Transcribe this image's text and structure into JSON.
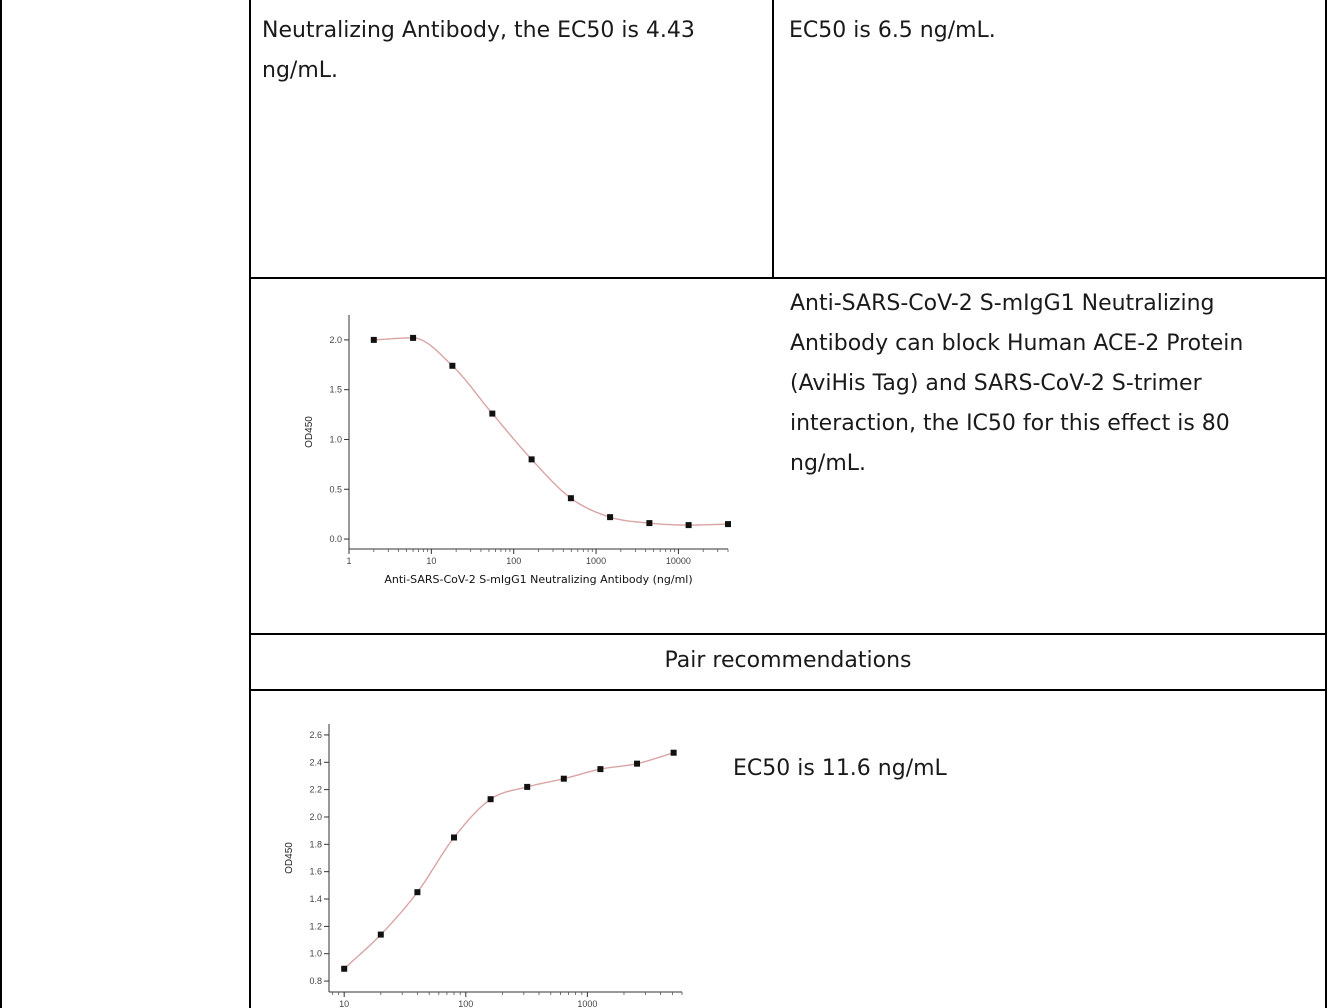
{
  "row1": {
    "left_text": "Neutralizing Antibody, the EC50 is 4.43 ng/mL.",
    "right_text": "EC50 is 6.5 ng/mL."
  },
  "row2": {
    "description": "Anti-SARS-CoV-2 S-mIgG1 Neutralizing Antibody can block Human ACE-2 Protein (AviHis Tag) and   SARS-CoV-2 S-trimer interaction, the IC50 for this effect is 80 ng/mL."
  },
  "row3": {
    "heading": "Pair recommendations"
  },
  "row4": {
    "description": "EC50 is 11.6 ng/mL"
  },
  "chart_data": [
    {
      "type": "scatter",
      "title": "",
      "xlabel": "Anti-SARS-CoV-2 S-mIgG1 Neutralizing Antibody (ng/ml)",
      "ylabel": "OD450",
      "x_scale": "log",
      "xlim": [
        1,
        40000
      ],
      "ylim": [
        -0.1,
        2.25
      ],
      "x_ticks": [
        "1",
        "10",
        "100",
        "1000",
        "10000"
      ],
      "y_ticks": [
        "0.0",
        "0.5",
        "1.0",
        "1.5",
        "2.0"
      ],
      "fit_curve": "sigmoidal",
      "curve_color": "#d9a4a4",
      "x": [
        2,
        6,
        18,
        55,
        165,
        495,
        1480,
        4440,
        13300,
        40000
      ],
      "y": [
        2.0,
        2.02,
        1.74,
        1.26,
        0.8,
        0.41,
        0.22,
        0.16,
        0.14,
        0.15
      ]
    },
    {
      "type": "scatter",
      "title": "",
      "xlabel": "",
      "ylabel": "OD450",
      "x_scale": "log",
      "xlim": [
        7.5,
        6000
      ],
      "ylim": [
        0.72,
        2.68
      ],
      "x_ticks": [
        "10",
        "100",
        "1000"
      ],
      "y_ticks": [
        "0.8",
        "1.0",
        "1.2",
        "1.4",
        "1.6",
        "1.8",
        "2.0",
        "2.2",
        "2.4",
        "2.6"
      ],
      "fit_curve": "sigmoidal",
      "curve_color": "#d9a4a4",
      "x": [
        10,
        20,
        40,
        80,
        160,
        320,
        640,
        1280,
        2560,
        5120
      ],
      "y": [
        0.89,
        1.14,
        1.45,
        1.85,
        2.13,
        2.22,
        2.28,
        2.35,
        2.39,
        2.47
      ]
    }
  ]
}
